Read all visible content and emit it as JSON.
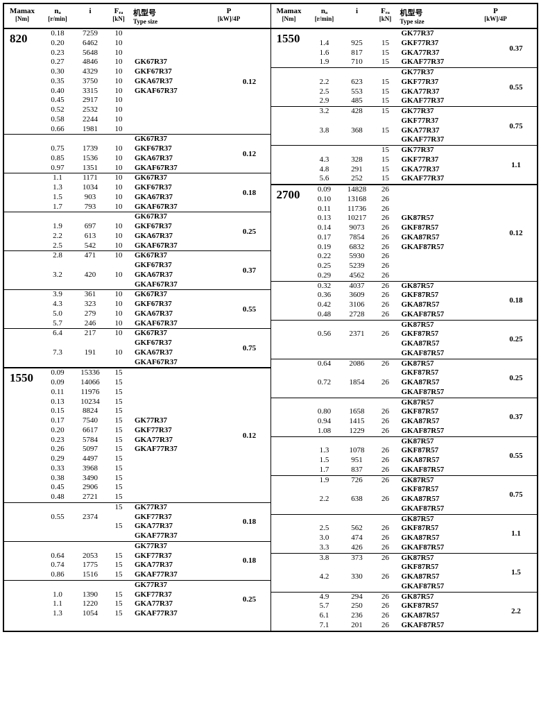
{
  "headers": {
    "mamax": "Mamax",
    "mamax_unit": "[Nm]",
    "na": "nₐ",
    "na_unit": "[r/min]",
    "i": "i",
    "fra": "Fᵣₐ",
    "fra_unit": "[kN]",
    "type": "机型号",
    "type_en": "Type size",
    "p": "P",
    "p_unit": "[kW]/4P"
  },
  "left": [
    {
      "mamax": "820",
      "groups": [
        {
          "p": "0.12",
          "rows": [
            {
              "na": "0.18",
              "i": "7259",
              "fra": "10",
              "ts": ""
            },
            {
              "na": "0.20",
              "i": "6462",
              "fra": "10",
              "ts": ""
            },
            {
              "na": "0.23",
              "i": "5648",
              "fra": "10",
              "ts": ""
            },
            {
              "na": "0.27",
              "i": "4846",
              "fra": "10",
              "ts": "GK67R37"
            },
            {
              "na": "0.30",
              "i": "4329",
              "fra": "10",
              "ts": "GKF67R37"
            },
            {
              "na": "0.35",
              "i": "3750",
              "fra": "10",
              "ts": "GKA67R37"
            },
            {
              "na": "0.40",
              "i": "3315",
              "fra": "10",
              "ts": "GKAF67R37"
            },
            {
              "na": "0.45",
              "i": "2917",
              "fra": "10",
              "ts": ""
            },
            {
              "na": "0.52",
              "i": "2532",
              "fra": "10",
              "ts": ""
            },
            {
              "na": "0.58",
              "i": "2244",
              "fra": "10",
              "ts": ""
            },
            {
              "na": "0.66",
              "i": "1981",
              "fra": "10",
              "ts": ""
            }
          ]
        },
        {
          "p": "0.12",
          "rows": [
            {
              "na": "",
              "i": "",
              "fra": "",
              "ts": "GK67R37"
            },
            {
              "na": "0.75",
              "i": "1739",
              "fra": "10",
              "ts": "GKF67R37"
            },
            {
              "na": "0.85",
              "i": "1536",
              "fra": "10",
              "ts": "GKA67R37"
            },
            {
              "na": "0.97",
              "i": "1351",
              "fra": "10",
              "ts": "GKAF67R37"
            }
          ]
        },
        {
          "p": "0.18",
          "rows": [
            {
              "na": "1.1",
              "i": "1171",
              "fra": "10",
              "ts": "GK67R37"
            },
            {
              "na": "1.3",
              "i": "1034",
              "fra": "10",
              "ts": "GKF67R37"
            },
            {
              "na": "1.5",
              "i": "903",
              "fra": "10",
              "ts": "GKA67R37"
            },
            {
              "na": "1.7",
              "i": "793",
              "fra": "10",
              "ts": "GKAF67R37"
            }
          ]
        },
        {
          "p": "0.25",
          "rows": [
            {
              "na": "",
              "i": "",
              "fra": "",
              "ts": "GK67R37"
            },
            {
              "na": "1.9",
              "i": "697",
              "fra": "10",
              "ts": "GKF67R37"
            },
            {
              "na": "2.2",
              "i": "613",
              "fra": "10",
              "ts": "GKA67R37"
            },
            {
              "na": "2.5",
              "i": "542",
              "fra": "10",
              "ts": "GKAF67R37"
            }
          ]
        },
        {
          "p": "0.37",
          "rows": [
            {
              "na": "2.8",
              "i": "471",
              "fra": "10",
              "ts": "GK67R37"
            },
            {
              "na": "",
              "i": "",
              "fra": "",
              "ts": "GKF67R37"
            },
            {
              "na": "3.2",
              "i": "420",
              "fra": "10",
              "ts": "GKA67R37"
            },
            {
              "na": "",
              "i": "",
              "fra": "",
              "ts": "GKAF67R37"
            }
          ]
        },
        {
          "p": "0.55",
          "rows": [
            {
              "na": "3.9",
              "i": "361",
              "fra": "10",
              "ts": "GK67R37"
            },
            {
              "na": "4.3",
              "i": "323",
              "fra": "10",
              "ts": "GKF67R37"
            },
            {
              "na": "5.0",
              "i": "279",
              "fra": "10",
              "ts": "GKA67R37"
            },
            {
              "na": "5.7",
              "i": "246",
              "fra": "10",
              "ts": "GKAF67R37"
            }
          ]
        },
        {
          "p": "0.75",
          "rows": [
            {
              "na": "6.4",
              "i": "217",
              "fra": "10",
              "ts": "GK67R37"
            },
            {
              "na": "",
              "i": "",
              "fra": "",
              "ts": "GKF67R37"
            },
            {
              "na": "7.3",
              "i": "191",
              "fra": "10",
              "ts": "GKA67R37"
            },
            {
              "na": "",
              "i": "",
              "fra": "",
              "ts": "GKAF67R37"
            }
          ]
        }
      ]
    },
    {
      "mamax": "1550",
      "groups": [
        {
          "p": "0.12",
          "rows": [
            {
              "na": "0.09",
              "i": "15336",
              "fra": "15",
              "ts": ""
            },
            {
              "na": "0.09",
              "i": "14066",
              "fra": "15",
              "ts": ""
            },
            {
              "na": "0.11",
              "i": "11976",
              "fra": "15",
              "ts": ""
            },
            {
              "na": "0.13",
              "i": "10234",
              "fra": "15",
              "ts": ""
            },
            {
              "na": "0.15",
              "i": "8824",
              "fra": "15",
              "ts": ""
            },
            {
              "na": "0.17",
              "i": "7540",
              "fra": "15",
              "ts": "GK77R37"
            },
            {
              "na": "0.20",
              "i": "6617",
              "fra": "15",
              "ts": "GKF77R37"
            },
            {
              "na": "0.23",
              "i": "5784",
              "fra": "15",
              "ts": "GKA77R37"
            },
            {
              "na": "0.26",
              "i": "5097",
              "fra": "15",
              "ts": "GKAF77R37"
            },
            {
              "na": "0.29",
              "i": "4497",
              "fra": "15",
              "ts": ""
            },
            {
              "na": "0.33",
              "i": "3968",
              "fra": "15",
              "ts": ""
            },
            {
              "na": "0.38",
              "i": "3490",
              "fra": "15",
              "ts": ""
            },
            {
              "na": "0.45",
              "i": "2906",
              "fra": "15",
              "ts": ""
            },
            {
              "na": "0.48",
              "i": "2721",
              "fra": "15",
              "ts": ""
            }
          ]
        },
        {
          "p": "0.18",
          "rows": [
            {
              "na": "",
              "i": "",
              "fra": "15",
              "ts": "GK77R37"
            },
            {
              "na": "0.55",
              "i": "2374",
              "fra": "",
              "ts": "GKF77R37"
            },
            {
              "na": "",
              "i": "",
              "fra": "15",
              "ts": "GKA77R37"
            },
            {
              "na": "",
              "i": "",
              "fra": "",
              "ts": "GKAF77R37"
            }
          ]
        },
        {
          "p": "0.18",
          "rows": [
            {
              "na": "",
              "i": "",
              "fra": "",
              "ts": "GK77R37"
            },
            {
              "na": "0.64",
              "i": "2053",
              "fra": "15",
              "ts": "GKF77R37"
            },
            {
              "na": "0.74",
              "i": "1775",
              "fra": "15",
              "ts": "GKA77R37"
            },
            {
              "na": "0.86",
              "i": "1516",
              "fra": "15",
              "ts": "GKAF77R37"
            }
          ]
        },
        {
          "p": "0.25",
          "rows": [
            {
              "na": "",
              "i": "",
              "fra": "",
              "ts": "GK77R37"
            },
            {
              "na": "1.0",
              "i": "1390",
              "fra": "15",
              "ts": "GKF77R37"
            },
            {
              "na": "1.1",
              "i": "1220",
              "fra": "15",
              "ts": "GKA77R37"
            },
            {
              "na": "1.3",
              "i": "1054",
              "fra": "15",
              "ts": "GKAF77R37"
            }
          ]
        }
      ]
    }
  ],
  "right": [
    {
      "mamax": "1550",
      "groups": [
        {
          "p": "0.37",
          "rows": [
            {
              "na": "",
              "i": "",
              "fra": "",
              "ts": "GK77R37"
            },
            {
              "na": "1.4",
              "i": "925",
              "fra": "15",
              "ts": "GKF77R37"
            },
            {
              "na": "1.6",
              "i": "817",
              "fra": "15",
              "ts": "GKA77R37"
            },
            {
              "na": "1.9",
              "i": "710",
              "fra": "15",
              "ts": "GKAF77R37"
            }
          ]
        },
        {
          "p": "0.55",
          "rows": [
            {
              "na": "",
              "i": "",
              "fra": "",
              "ts": "GK77R37"
            },
            {
              "na": "2.2",
              "i": "623",
              "fra": "15",
              "ts": "GKF77R37"
            },
            {
              "na": "2.5",
              "i": "553",
              "fra": "15",
              "ts": "GKA77R37"
            },
            {
              "na": "2.9",
              "i": "485",
              "fra": "15",
              "ts": "GKAF77R37"
            }
          ]
        },
        {
          "p": "0.75",
          "rows": [
            {
              "na": "3.2",
              "i": "428",
              "fra": "15",
              "ts": "GK77R37"
            },
            {
              "na": "",
              "i": "",
              "fra": "",
              "ts": "GKF77R37"
            },
            {
              "na": "3.8",
              "i": "368",
              "fra": "15",
              "ts": "GKA77R37"
            },
            {
              "na": "",
              "i": "",
              "fra": "",
              "ts": "GKAF77R37"
            }
          ]
        },
        {
          "p": "1.1",
          "rows": [
            {
              "na": "",
              "i": "",
              "fra": "15",
              "ts": "GK77R37"
            },
            {
              "na": "4.3",
              "i": "328",
              "fra": "15",
              "ts": "GKF77R37"
            },
            {
              "na": "4.8",
              "i": "291",
              "fra": "15",
              "ts": "GKA77R37"
            },
            {
              "na": "5.6",
              "i": "252",
              "fra": "15",
              "ts": "GKAF77R37"
            }
          ]
        }
      ]
    },
    {
      "mamax": "2700",
      "groups": [
        {
          "p": "0.12",
          "rows": [
            {
              "na": "0.09",
              "i": "14828",
              "fra": "26",
              "ts": ""
            },
            {
              "na": "0.10",
              "i": "13168",
              "fra": "26",
              "ts": ""
            },
            {
              "na": "0.11",
              "i": "11736",
              "fra": "26",
              "ts": ""
            },
            {
              "na": "0.13",
              "i": "10217",
              "fra": "26",
              "ts": "GK87R57"
            },
            {
              "na": "0.14",
              "i": "9073",
              "fra": "26",
              "ts": "GKF87R57"
            },
            {
              "na": "0.17",
              "i": "7854",
              "fra": "26",
              "ts": "GKA87R57"
            },
            {
              "na": "0.19",
              "i": "6832",
              "fra": "26",
              "ts": "GKAF87R57"
            },
            {
              "na": "0.22",
              "i": "5930",
              "fra": "26",
              "ts": ""
            },
            {
              "na": "0.25",
              "i": "5239",
              "fra": "26",
              "ts": ""
            },
            {
              "na": "0.29",
              "i": "4562",
              "fra": "26",
              "ts": ""
            }
          ]
        },
        {
          "p": "0.18",
          "rows": [
            {
              "na": "0.32",
              "i": "4037",
              "fra": "26",
              "ts": "GK87R57"
            },
            {
              "na": "0.36",
              "i": "3609",
              "fra": "26",
              "ts": "GKF87R57"
            },
            {
              "na": "0.42",
              "i": "3106",
              "fra": "26",
              "ts": "GKA87R57"
            },
            {
              "na": "0.48",
              "i": "2728",
              "fra": "26",
              "ts": "GKAF87R57"
            }
          ]
        },
        {
          "p": "0.25",
          "rows": [
            {
              "na": "",
              "i": "",
              "fra": "",
              "ts": "GK87R57"
            },
            {
              "na": "0.56",
              "i": "2371",
              "fra": "26",
              "ts": "GKF87R57"
            },
            {
              "na": "",
              "i": "",
              "fra": "",
              "ts": "GKA87R57"
            },
            {
              "na": "",
              "i": "",
              "fra": "",
              "ts": "GKAF87R57"
            }
          ]
        },
        {
          "p": "0.25",
          "rows": [
            {
              "na": "0.64",
              "i": "2086",
              "fra": "26",
              "ts": "GK87R57"
            },
            {
              "na": "",
              "i": "",
              "fra": "",
              "ts": "GKF87R57"
            },
            {
              "na": "0.72",
              "i": "1854",
              "fra": "26",
              "ts": "GKA87R57"
            },
            {
              "na": "",
              "i": "",
              "fra": "",
              "ts": "GKAF87R57"
            }
          ]
        },
        {
          "p": "0.37",
          "rows": [
            {
              "na": "",
              "i": "",
              "fra": "",
              "ts": "GK87R57"
            },
            {
              "na": "0.80",
              "i": "1658",
              "fra": "26",
              "ts": "GKF87R57"
            },
            {
              "na": "0.94",
              "i": "1415",
              "fra": "26",
              "ts": "GKA87R57"
            },
            {
              "na": "1.08",
              "i": "1229",
              "fra": "26",
              "ts": "GKAF87R57"
            }
          ]
        },
        {
          "p": "0.55",
          "rows": [
            {
              "na": "",
              "i": "",
              "fra": "",
              "ts": "GK87R57"
            },
            {
              "na": "1.3",
              "i": "1078",
              "fra": "26",
              "ts": "GKF87R57"
            },
            {
              "na": "1.5",
              "i": "951",
              "fra": "26",
              "ts": "GKA87R57"
            },
            {
              "na": "1.7",
              "i": "837",
              "fra": "26",
              "ts": "GKAF87R57"
            }
          ]
        },
        {
          "p": "0.75",
          "rows": [
            {
              "na": "1.9",
              "i": "726",
              "fra": "26",
              "ts": "GK87R57"
            },
            {
              "na": "",
              "i": "",
              "fra": "",
              "ts": "GKF87R57"
            },
            {
              "na": "2.2",
              "i": "638",
              "fra": "26",
              "ts": "GKA87R57"
            },
            {
              "na": "",
              "i": "",
              "fra": "",
              "ts": "GKAF87R57"
            }
          ]
        },
        {
          "p": "1.1",
          "rows": [
            {
              "na": "",
              "i": "",
              "fra": "",
              "ts": "GK87R57"
            },
            {
              "na": "2.5",
              "i": "562",
              "fra": "26",
              "ts": "GKF87R57"
            },
            {
              "na": "3.0",
              "i": "474",
              "fra": "26",
              "ts": "GKA87R57"
            },
            {
              "na": "3.3",
              "i": "426",
              "fra": "26",
              "ts": "GKAF87R57"
            }
          ]
        },
        {
          "p": "1.5",
          "rows": [
            {
              "na": "3.8",
              "i": "373",
              "fra": "26",
              "ts": "GK87R57"
            },
            {
              "na": "",
              "i": "",
              "fra": "",
              "ts": "GKF87R57"
            },
            {
              "na": "4.2",
              "i": "330",
              "fra": "26",
              "ts": "GKA87R57"
            },
            {
              "na": "",
              "i": "",
              "fra": "",
              "ts": "GKAF87R57"
            }
          ]
        },
        {
          "p": "2.2",
          "rows": [
            {
              "na": "4.9",
              "i": "294",
              "fra": "26",
              "ts": "GK87R57"
            },
            {
              "na": "5.7",
              "i": "250",
              "fra": "26",
              "ts": "GKF87R57"
            },
            {
              "na": "6.1",
              "i": "236",
              "fra": "26",
              "ts": "GKA87R57"
            },
            {
              "na": "7.1",
              "i": "201",
              "fra": "26",
              "ts": "GKAF87R57"
            }
          ]
        }
      ]
    }
  ]
}
